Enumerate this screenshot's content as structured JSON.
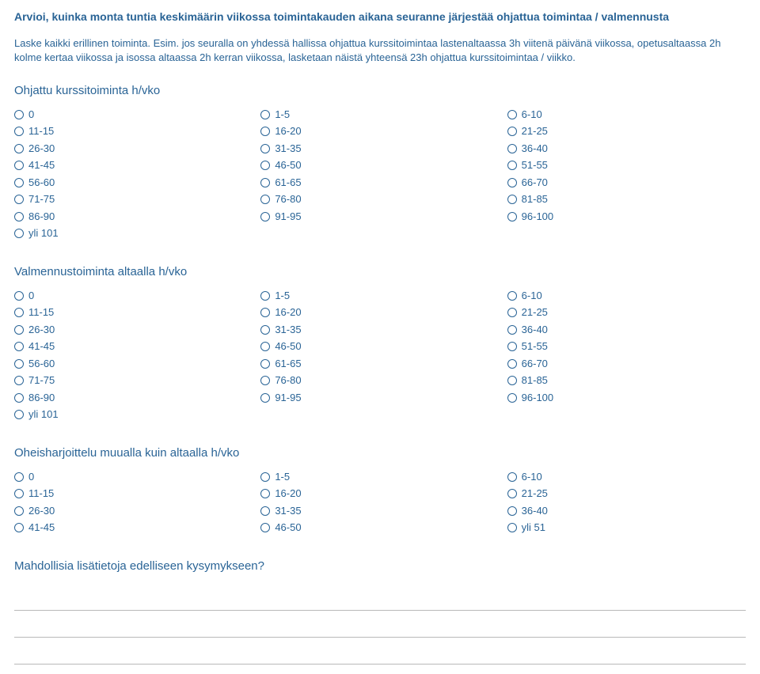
{
  "title": "Arvioi, kuinka monta tuntia keskimäärin viikossa toimintakauden aikana seuranne järjestää ohjattua toimintaa / valmennusta",
  "description": "Laske kaikki erillinen toiminta. Esim. jos seuralla on yhdessä hallissa ohjattua kurssitoimintaa lastenaltaassa 3h viitenä päivänä viikossa, opetusaltaassa 2h kolme kertaa viikossa ja isossa altaassa 2h kerran viikossa, lasketaan näistä yhteensä 23h ohjattua kurssitoimintaa / viikko.",
  "sections": [
    {
      "heading": "Ohjattu kurssitoiminta h/vko",
      "options": [
        "0",
        "1-5",
        "6-10",
        "11-15",
        "16-20",
        "21-25",
        "26-30",
        "31-35",
        "36-40",
        "41-45",
        "46-50",
        "51-55",
        "56-60",
        "61-65",
        "66-70",
        "71-75",
        "76-80",
        "81-85",
        "86-90",
        "91-95",
        "96-100",
        "yli 101"
      ]
    },
    {
      "heading": "Valmennustoiminta altaalla h/vko",
      "options": [
        "0",
        "1-5",
        "6-10",
        "11-15",
        "16-20",
        "21-25",
        "26-30",
        "31-35",
        "36-40",
        "41-45",
        "46-50",
        "51-55",
        "56-60",
        "61-65",
        "66-70",
        "71-75",
        "76-80",
        "81-85",
        "86-90",
        "91-95",
        "96-100",
        "yli 101"
      ]
    },
    {
      "heading": "Oheisharjoittelu muualla kuin altaalla h/vko",
      "options": [
        "0",
        "1-5",
        "6-10",
        "11-15",
        "16-20",
        "21-25",
        "26-30",
        "31-35",
        "36-40",
        "41-45",
        "46-50",
        "yli 51"
      ]
    }
  ],
  "freetext_heading": "Mahdollisia lisätietoja edelliseen kysymykseen?",
  "freetext_lines": 3,
  "colors": {
    "text": "#2a6496",
    "background": "#ffffff",
    "line": "#b8b8b8"
  }
}
